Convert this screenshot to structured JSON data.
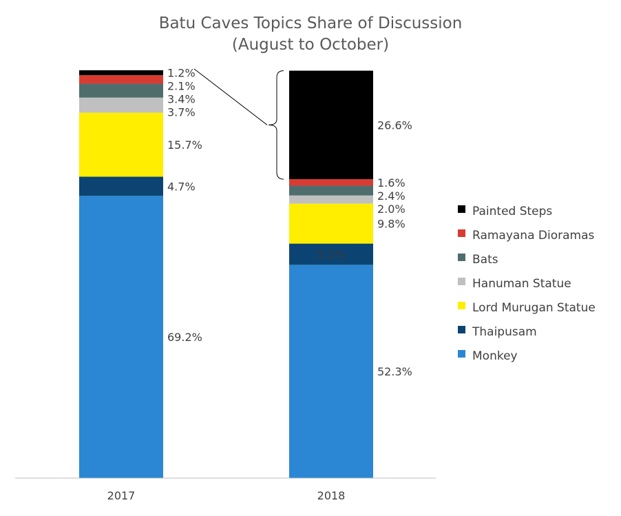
{
  "chart_data": {
    "type": "bar",
    "stacked": true,
    "title": "Batu Caves Topics Share of Discussion",
    "subtitle": "(August to October)",
    "categories": [
      "2017",
      "2018"
    ],
    "ylim": [
      0,
      100
    ],
    "grid": false,
    "legend_position": "right",
    "series": [
      {
        "name": "Monkey",
        "color": "#2b87d3",
        "values": [
          69.2,
          52.3
        ],
        "labels": [
          "69.2%",
          "52.3%"
        ]
      },
      {
        "name": "Thaipusam",
        "color": "#0b4472",
        "values": [
          4.7,
          5.2
        ],
        "labels": [
          "4.7%",
          "5.2%"
        ]
      },
      {
        "name": "Lord Murugan Statue",
        "color": "#ffee00",
        "values": [
          15.7,
          9.8
        ],
        "labels": [
          "15.7%",
          "9.8%"
        ]
      },
      {
        "name": "Hanuman Statue",
        "color": "#c0c0c0",
        "values": [
          3.7,
          2.0
        ],
        "labels": [
          "3.7%",
          "2.0%"
        ]
      },
      {
        "name": "Bats",
        "color": "#506d6e",
        "values": [
          3.4,
          2.4
        ],
        "labels": [
          "3.4%",
          "2.4%"
        ]
      },
      {
        "name": "Ramayana Dioramas",
        "color": "#d83b31",
        "values": [
          2.1,
          1.6
        ],
        "labels": [
          "2.1%",
          "1.6%"
        ]
      },
      {
        "name": "Painted Steps",
        "color": "#000000",
        "values": [
          1.2,
          26.6
        ],
        "labels": [
          "1.2%",
          "26.6%"
        ]
      }
    ],
    "legend_order": [
      "Painted Steps",
      "Ramayana Dioramas",
      "Bats",
      "Hanuman Statue",
      "Lord Murugan Statue",
      "Thaipusam",
      "Monkey"
    ],
    "annotation": "Painted Steps share highlighted with connector line and bracket between 2017 and 2018"
  }
}
